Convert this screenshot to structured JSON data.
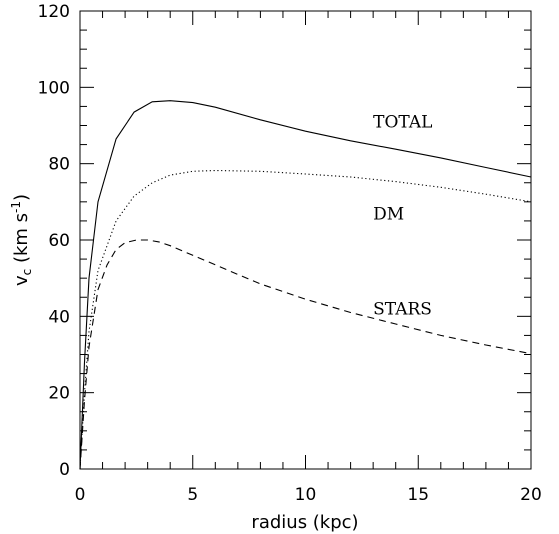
{
  "chart_data": {
    "type": "line",
    "title": "",
    "xlabel": "radius (kpc)",
    "ylabel": "v_c (km s^-1)",
    "xlim": [
      0,
      20
    ],
    "ylim": [
      0,
      120
    ],
    "grid": false,
    "x_ticks": [
      "0",
      "5",
      "10",
      "15",
      "20"
    ],
    "y_ticks": [
      "0",
      "20",
      "40",
      "60",
      "80",
      "100",
      "120"
    ],
    "series": [
      {
        "name": "TOTAL",
        "style": "solid",
        "x": [
          0,
          0.2,
          0.4,
          0.8,
          1.6,
          2.4,
          3.2,
          4.0,
          5.0,
          6.0,
          8.0,
          10.0,
          12.0,
          14.0,
          16.0,
          18.0,
          20.0
        ],
        "values": [
          0,
          28,
          50,
          70,
          86.5,
          93.5,
          96.2,
          96.5,
          96.0,
          94.8,
          91.5,
          88.5,
          86.0,
          83.8,
          81.5,
          79.0,
          76.5
        ]
      },
      {
        "name": "DM",
        "style": "dotted",
        "x": [
          0,
          0.2,
          0.4,
          0.8,
          1.6,
          2.4,
          3.2,
          4.0,
          5.0,
          6.0,
          8.0,
          10.0,
          12.0,
          14.0,
          16.0,
          18.0,
          20.0
        ],
        "values": [
          0,
          20,
          36,
          52,
          65,
          71.5,
          75,
          77,
          78,
          78.2,
          78.0,
          77.3,
          76.5,
          75.3,
          73.8,
          72.0,
          70.0
        ]
      },
      {
        "name": "STARS",
        "style": "dashed",
        "x": [
          0,
          0.2,
          0.4,
          0.8,
          1.2,
          1.6,
          2.0,
          2.5,
          3.0,
          3.5,
          4.0,
          5.0,
          6.0,
          7.0,
          8.0,
          10.0,
          12.0,
          14.0,
          16.0,
          18.0,
          20.0
        ],
        "values": [
          0,
          18,
          32,
          47,
          53.5,
          57.5,
          59.3,
          60.0,
          60.0,
          59.5,
          58.5,
          56.0,
          53.5,
          51.0,
          48.5,
          44.5,
          41.0,
          38.0,
          35.0,
          32.5,
          30.2
        ]
      }
    ],
    "annotations": [
      {
        "text": "TOTAL",
        "x": 13.0,
        "y": 91
      },
      {
        "text": "DM",
        "x": 13.0,
        "y": 67
      },
      {
        "text": "STARS",
        "x": 13.0,
        "y": 42
      }
    ]
  }
}
